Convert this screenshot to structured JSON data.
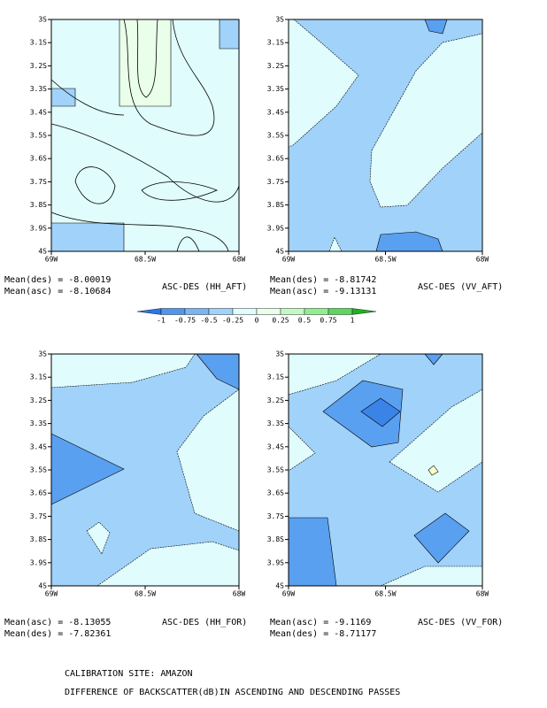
{
  "panels": [
    {
      "title": "ASC-DES (HH_AFT)",
      "stats": [
        "Mean(des) = -8.00019",
        "Mean(asc) = -8.10684"
      ],
      "x_labels": [
        "69W",
        "68.5W",
        "68W"
      ],
      "y_labels": [
        "3S",
        "3.1S",
        "3.2S",
        "3.3S",
        "3.4S",
        "3.5S",
        "3.6S",
        "3.7S",
        "3.8S",
        "3.9S",
        "4S"
      ]
    },
    {
      "title": "ASC-DES (VV_AFT)",
      "stats": [
        "Mean(des) = -8.81742",
        "Mean(asc) = -9.13131"
      ],
      "x_labels": [
        "69W",
        "68.5W",
        "68W"
      ],
      "y_labels": [
        "3S",
        "3.1S",
        "3.2S",
        "3.3S",
        "3.4S",
        "3.5S",
        "3.6S",
        "3.7S",
        "3.8S",
        "3.9S",
        "4S"
      ]
    },
    {
      "title": "ASC-DES (HH_FOR)",
      "stats": [
        "Mean(asc) = -8.13055",
        "Mean(des) = -7.82361"
      ],
      "x_labels": [
        "69W",
        "68.5W",
        "68W"
      ],
      "y_labels": [
        "3S",
        "3.1S",
        "3.2S",
        "3.3S",
        "3.4S",
        "3.5S",
        "3.6S",
        "3.7S",
        "3.8S",
        "3.9S",
        "4S"
      ]
    },
    {
      "title": "ASC-DES (VV_FOR)",
      "stats": [
        "Mean(asc) = -9.1169",
        "Mean(des) = -8.71177"
      ],
      "x_labels": [
        "69W",
        "68.5W",
        "68W"
      ],
      "y_labels": [
        "3S",
        "3.1S",
        "3.2S",
        "3.3S",
        "3.4S",
        "3.5S",
        "3.6S",
        "3.7S",
        "3.8S",
        "3.9S",
        "4S"
      ]
    }
  ],
  "colorbar": {
    "labels": [
      "-1",
      "-0.75",
      "-0.5",
      "-0.25",
      "0",
      "0.25",
      "0.5",
      "0.75",
      "1"
    ],
    "colors": [
      "#2a78e0",
      "#4f96ec",
      "#7ab4f3",
      "#a0d2fa",
      "#e0fcfc",
      "#eaffea",
      "#c4f8c4",
      "#90ee90",
      "#5cd65c",
      "#22b022"
    ]
  },
  "footer": [
    "CALIBRATION SITE: AMAZON",
    "DIFFERENCE OF BACKSCATTER(dB)IN ASCENDING AND DESCENDING PASSES"
  ]
}
